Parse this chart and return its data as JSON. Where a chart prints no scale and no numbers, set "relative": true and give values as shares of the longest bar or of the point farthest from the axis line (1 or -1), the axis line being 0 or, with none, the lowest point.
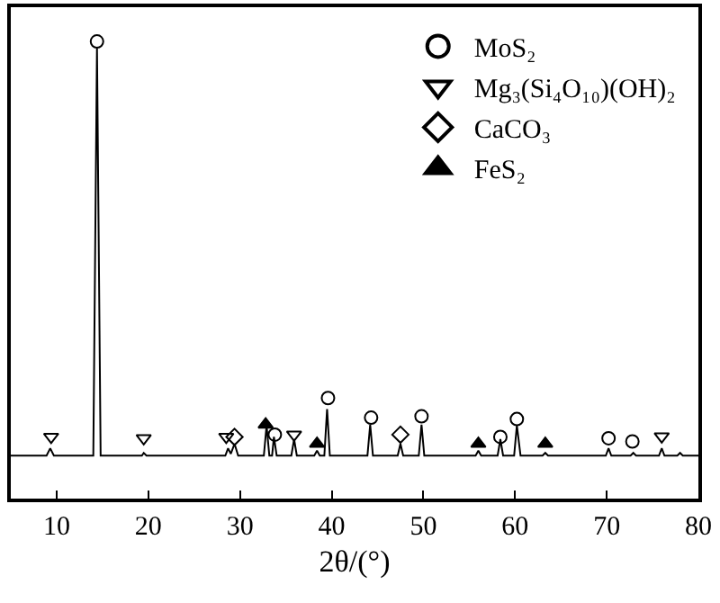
{
  "chart_data": {
    "type": "line",
    "relative": true,
    "xlabel": "2θ/(°)",
    "xlim": [
      5,
      80
    ],
    "xticks": [
      10,
      20,
      30,
      40,
      50,
      60,
      70,
      80
    ],
    "grid": false,
    "legend": "top right",
    "series": [
      {
        "type": "line",
        "color": "#000000",
        "marker": "none",
        "x": [
          5,
          7,
          8.9,
          9.3,
          9.7,
          12,
          14.0,
          14.4,
          14.8,
          17,
          19.3,
          19.5,
          19.8,
          23,
          26,
          28.4,
          28.7,
          29.0,
          29.4,
          29.8,
          31,
          32.6,
          32.9,
          33.2,
          33.5,
          33.7,
          34.0,
          35.6,
          35.9,
          36.2,
          38.1,
          38.4,
          38.7,
          39.2,
          39.5,
          39.8,
          41,
          43.9,
          44.2,
          44.5,
          47.2,
          47.5,
          47.8,
          49.5,
          49.8,
          50.1,
          53,
          55.7,
          56.0,
          56.3,
          58.1,
          58.4,
          58.7,
          59.9,
          60.2,
          60.6,
          62,
          63.0,
          63.3,
          63.6,
          67,
          69.9,
          70.2,
          70.5,
          72.6,
          72.9,
          73.2,
          75.7,
          76.0,
          76.3,
          77.7,
          78.0,
          78.3,
          80
        ],
        "values": [
          0.094,
          0.094,
          0.094,
          0.11,
          0.094,
          0.094,
          0.094,
          0.985,
          0.094,
          0.094,
          0.094,
          0.1,
          0.094,
          0.094,
          0.094,
          0.094,
          0.11,
          0.098,
          0.12,
          0.094,
          0.094,
          0.094,
          0.16,
          0.094,
          0.094,
          0.135,
          0.094,
          0.094,
          0.13,
          0.094,
          0.094,
          0.105,
          0.094,
          0.094,
          0.196,
          0.094,
          0.094,
          0.094,
          0.162,
          0.094,
          0.094,
          0.12,
          0.094,
          0.094,
          0.162,
          0.094,
          0.094,
          0.094,
          0.105,
          0.094,
          0.094,
          0.13,
          0.094,
          0.094,
          0.16,
          0.094,
          0.094,
          0.094,
          0.1,
          0.094,
          0.094,
          0.094,
          0.11,
          0.094,
          0.094,
          0.1,
          0.094,
          0.094,
          0.11,
          0.094,
          0.094,
          0.1,
          0.094,
          0.094
        ]
      },
      {
        "type": "scatter",
        "name": "MoS₂",
        "color": "#000000",
        "marker": "circle",
        "x": [
          14.4,
          33.8,
          39.6,
          44.3,
          49.8,
          58.4,
          60.2,
          70.2,
          72.8
        ],
        "values": [
          1.0,
          0.14,
          0.22,
          0.177,
          0.18,
          0.135,
          0.174,
          0.132,
          0.125
        ]
      },
      {
        "type": "scatter",
        "name": "Mg₃(Si₄O₁₀)(OH)₂",
        "color": "#000000",
        "marker": "triangle-down",
        "x": [
          9.4,
          19.5,
          28.5,
          35.9,
          76.0
        ],
        "values": [
          0.135,
          0.132,
          0.135,
          0.14,
          0.136
        ]
      },
      {
        "type": "scatter",
        "name": "CaCO₃",
        "color": "#000000",
        "marker": "diamond",
        "x": [
          29.4,
          47.5
        ],
        "values": [
          0.135,
          0.14
        ]
      },
      {
        "type": "scatter",
        "name": "FeS₂",
        "color": "#000000",
        "marker": "triangle",
        "x": [
          32.8,
          38.4,
          56.0,
          63.3
        ],
        "values": [
          0.162,
          0.12,
          0.12,
          0.12
        ]
      }
    ]
  }
}
